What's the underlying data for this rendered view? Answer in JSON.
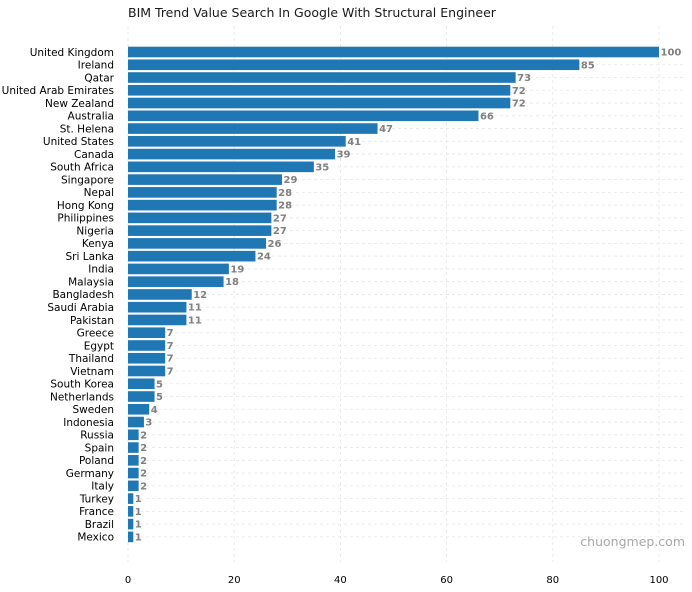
{
  "chart_data": {
    "type": "bar",
    "orientation": "horizontal",
    "title": "BIM Trend Value Search In Google With Structural Engineer",
    "xlabel": "",
    "ylabel": "",
    "xlim": [
      0,
      100
    ],
    "xticks": [
      0,
      20,
      40,
      60,
      80,
      100
    ],
    "grid": true,
    "bar_color": "#1f77b4",
    "value_label_color": "#808080",
    "categories": [
      "United Kingdom",
      "Ireland",
      "Qatar",
      "United Arab Emirates",
      "New Zealand",
      "Australia",
      "St. Helena",
      "United States",
      "Canada",
      "South Africa",
      "Singapore",
      "Nepal",
      "Hong Kong",
      "Philippines",
      "Nigeria",
      "Kenya",
      "Sri Lanka",
      "India",
      "Malaysia",
      "Bangladesh",
      "Saudi Arabia",
      "Pakistan",
      "Greece",
      "Egypt",
      "Thailand",
      "Vietnam",
      "South Korea",
      "Netherlands",
      "Sweden",
      "Indonesia",
      "Russia",
      "Spain",
      "Poland",
      "Germany",
      "Italy",
      "Turkey",
      "France",
      "Brazil",
      "Mexico"
    ],
    "values": [
      100,
      85,
      73,
      72,
      72,
      66,
      47,
      41,
      39,
      35,
      29,
      28,
      28,
      27,
      27,
      26,
      24,
      19,
      18,
      12,
      11,
      11,
      7,
      7,
      7,
      7,
      5,
      5,
      4,
      3,
      2,
      2,
      2,
      2,
      2,
      1,
      1,
      1,
      1
    ]
  },
  "watermark": "chuongmep.com"
}
